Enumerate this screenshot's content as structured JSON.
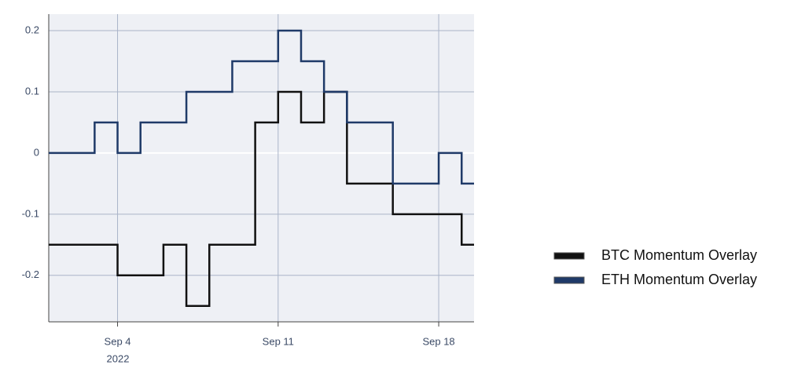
{
  "chart_data": {
    "type": "line",
    "step": true,
    "x": [
      "2022-09-01",
      "2022-09-02",
      "2022-09-03",
      "2022-09-04",
      "2022-09-05",
      "2022-09-06",
      "2022-09-07",
      "2022-09-08",
      "2022-09-09",
      "2022-09-10",
      "2022-09-11",
      "2022-09-12",
      "2022-09-13",
      "2022-09-14",
      "2022-09-15",
      "2022-09-16",
      "2022-09-17",
      "2022-09-18",
      "2022-09-19"
    ],
    "series": [
      {
        "name": "BTC Momentum Overlay",
        "color": "#111111",
        "values": [
          -0.15,
          -0.15,
          -0.15,
          -0.2,
          -0.2,
          -0.15,
          -0.25,
          -0.15,
          -0.15,
          0.05,
          0.1,
          0.05,
          0.1,
          -0.05,
          -0.05,
          -0.1,
          -0.1,
          -0.1,
          -0.15
        ]
      },
      {
        "name": "ETH Momentum Overlay",
        "color": "#1f3a68",
        "values": [
          0,
          0,
          0.05,
          0,
          0.05,
          0.05,
          0.1,
          0.1,
          0.15,
          0.15,
          0.2,
          0.15,
          0.1,
          0.05,
          0.05,
          -0.05,
          -0.05,
          0,
          -0.05
        ]
      }
    ],
    "xlim": [
      "2022-09-01",
      "2022-09-19"
    ],
    "xticks": [
      {
        "value": "2022-09-04",
        "label": "Sep 4"
      },
      {
        "value": "2022-09-11",
        "label": "Sep 11"
      },
      {
        "value": "2022-09-18",
        "label": "Sep 18"
      }
    ],
    "x_year_label": "2022",
    "ylim": [
      -0.276,
      0.227
    ],
    "yticks": [
      0.2,
      0.1,
      0,
      -0.1,
      -0.2
    ],
    "grid": true
  }
}
